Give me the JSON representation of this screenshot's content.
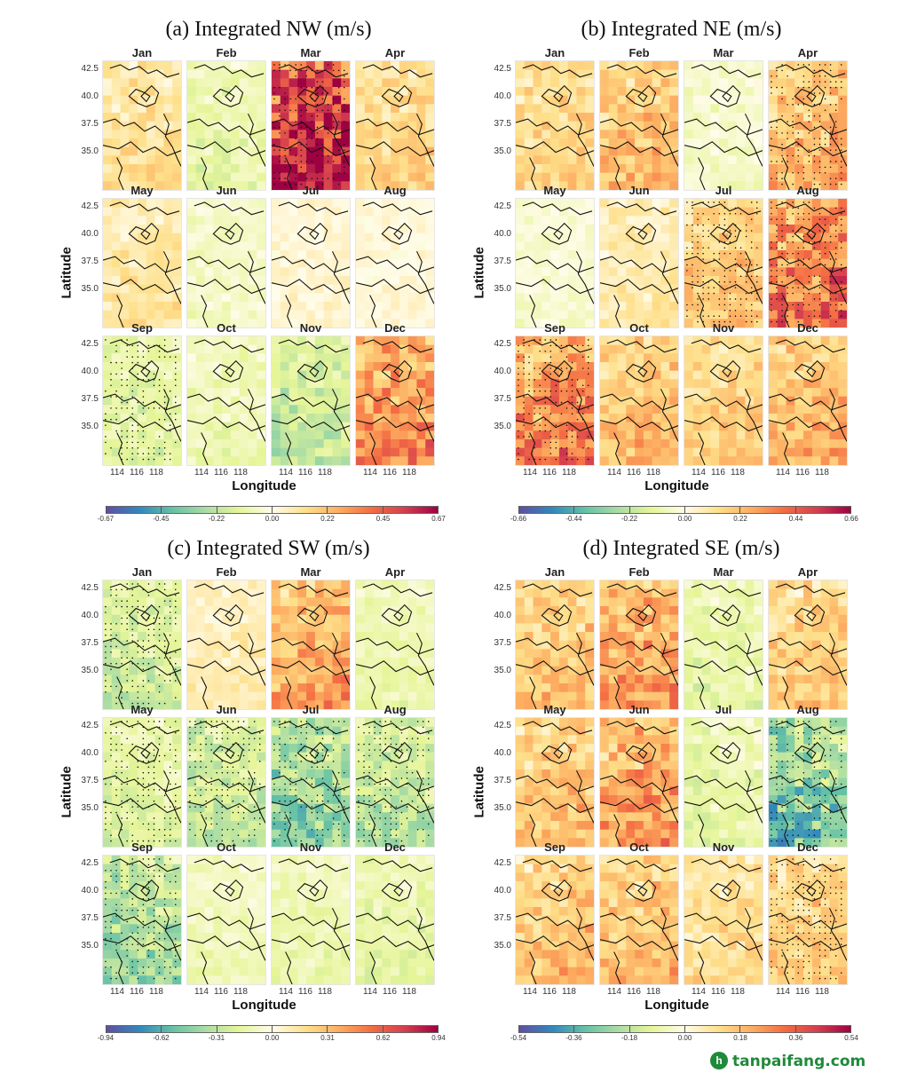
{
  "months": [
    "Jan",
    "Feb",
    "Mar",
    "Apr",
    "May",
    "Jun",
    "Jul",
    "Aug",
    "Sep",
    "Oct",
    "Nov",
    "Dec"
  ],
  "axes": {
    "ylabel": "Latitude",
    "xlabel": "Longitude",
    "yticks": [
      "42.5",
      "40.0",
      "37.5",
      "35.0"
    ],
    "xticks": [
      "114",
      "116",
      "118"
    ]
  },
  "chart_data": [
    {
      "type": "heatmap",
      "id": "a",
      "title": "(a) Integrated NW (m/s)",
      "colorbar_ticks": [
        "-0.67",
        "-0.45",
        "-0.22",
        "0.00",
        "0.22",
        "0.45",
        "0.67"
      ],
      "range": [
        -0.67,
        0.67
      ],
      "months": [
        "Jan",
        "Feb",
        "Mar",
        "Apr",
        "May",
        "Jun",
        "Jul",
        "Aug",
        "Sep",
        "Oct",
        "Nov",
        "Dec"
      ],
      "pattern_values": [
        0.12,
        -0.1,
        0.55,
        0.15,
        0.1,
        -0.05,
        0.03,
        0.02,
        -0.12,
        -0.08,
        -0.18,
        0.3
      ],
      "significant": [
        false,
        false,
        true,
        false,
        false,
        false,
        false,
        false,
        true,
        false,
        false,
        false
      ]
    },
    {
      "type": "heatmap",
      "id": "b",
      "title": "(b) Integrated NE (m/s)",
      "colorbar_ticks": [
        "-0.66",
        "-0.44",
        "-0.22",
        "0.00",
        "0.22",
        "0.44",
        "0.66"
      ],
      "range": [
        -0.66,
        0.66
      ],
      "months": [
        "Jan",
        "Feb",
        "Mar",
        "Apr",
        "May",
        "Jun",
        "Jul",
        "Aug",
        "Sep",
        "Oct",
        "Nov",
        "Dec"
      ],
      "pattern_values": [
        0.15,
        0.2,
        -0.05,
        0.22,
        -0.04,
        0.08,
        0.18,
        0.35,
        0.32,
        0.2,
        0.16,
        0.22
      ],
      "significant": [
        false,
        false,
        false,
        true,
        false,
        false,
        true,
        true,
        true,
        false,
        false,
        false
      ]
    },
    {
      "type": "heatmap",
      "id": "c",
      "title": "(c) Integrated SW (m/s)",
      "colorbar_ticks": [
        "-0.94",
        "-0.62",
        "-0.31",
        "0.00",
        "0.31",
        "0.62",
        "0.94"
      ],
      "range": [
        -0.94,
        0.94
      ],
      "months": [
        "Jan",
        "Feb",
        "Mar",
        "Apr",
        "May",
        "Jun",
        "Jul",
        "Aug",
        "Sep",
        "Oct",
        "Nov",
        "Dec"
      ],
      "pattern_values": [
        -0.22,
        0.1,
        0.35,
        -0.12,
        -0.18,
        -0.25,
        -0.4,
        -0.28,
        -0.35,
        -0.1,
        -0.12,
        -0.15
      ],
      "significant": [
        true,
        false,
        false,
        false,
        true,
        true,
        true,
        true,
        true,
        false,
        false,
        false
      ]
    },
    {
      "type": "heatmap",
      "id": "d",
      "title": "(d) Integrated SE (m/s)",
      "colorbar_ticks": [
        "-0.54",
        "-0.36",
        "-0.18",
        "0.00",
        "0.18",
        "0.36",
        "0.54"
      ],
      "range": [
        -0.54,
        0.54
      ],
      "months": [
        "Jan",
        "Feb",
        "Mar",
        "Apr",
        "May",
        "Jun",
        "Jul",
        "Aug",
        "Sep",
        "Oct",
        "Nov",
        "Dec"
      ],
      "pattern_values": [
        0.15,
        0.22,
        -0.08,
        0.14,
        0.16,
        0.22,
        -0.08,
        -0.25,
        0.16,
        0.16,
        0.1,
        0.14
      ],
      "significant": [
        false,
        false,
        false,
        false,
        false,
        false,
        false,
        true,
        false,
        false,
        false,
        true
      ]
    }
  ],
  "colors": {
    "scale": [
      "#5e4fa2",
      "#3288bd",
      "#66c2a5",
      "#abdda4",
      "#e6f598",
      "#fffcea",
      "#fee08b",
      "#fdae61",
      "#f46d43",
      "#d53e4f",
      "#9e0142"
    ]
  },
  "watermark": {
    "icon": "leaf-icon",
    "text": "tanpaifang.com"
  }
}
